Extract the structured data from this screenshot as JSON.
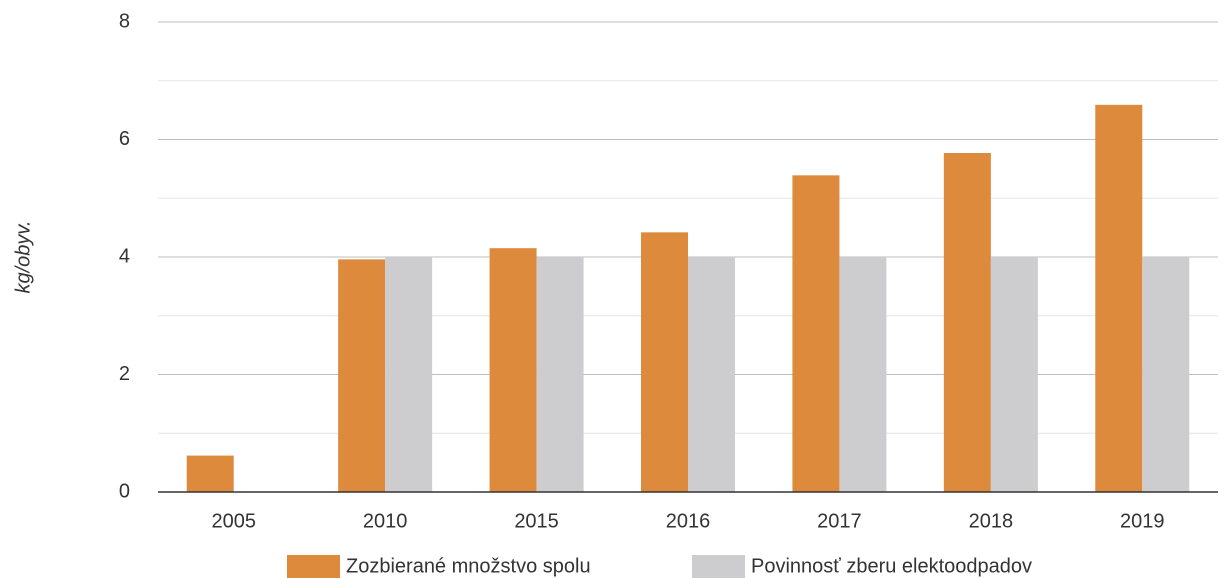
{
  "chart_data": {
    "type": "bar",
    "y_label": "kg/obyv.",
    "categories": [
      "2005",
      "2010",
      "2015",
      "2016",
      "2017",
      "2018",
      "2019"
    ],
    "series": [
      {
        "name": "Zozbierané množstvo spolu",
        "color": "#dd8a3c",
        "values": [
          0.62,
          3.96,
          4.15,
          4.42,
          5.39,
          5.77,
          6.59
        ]
      },
      {
        "name": "Povinnosť zberu elektoodpadov",
        "color": "#cdcdcf",
        "values": [
          null,
          4,
          4,
          4,
          4,
          4,
          4
        ]
      }
    ],
    "ylim": [
      0,
      8
    ],
    "yticks": [
      0,
      2,
      4,
      6,
      8
    ],
    "minor_yticks": [
      1,
      3,
      5,
      7
    ],
    "grid": true,
    "legend": "bottom"
  }
}
